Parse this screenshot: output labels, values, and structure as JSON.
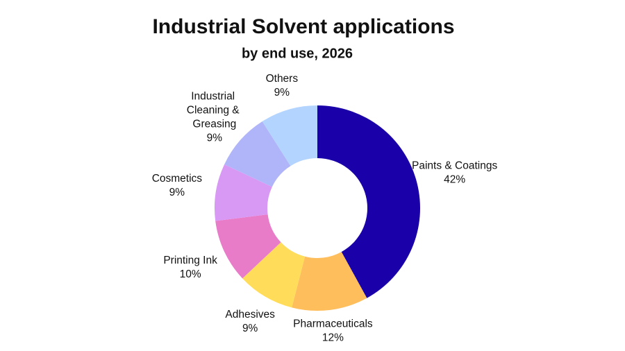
{
  "chart_data": {
    "type": "donut",
    "title": "Industrial Solvent applications",
    "subtitle": "by end use, 2026",
    "categories": [
      "Paints & Coatings",
      "Pharmaceuticals",
      "Adhesives",
      "Printing Ink",
      "Cosmetics",
      "Industrial Cleaning & Greasing",
      "Others"
    ],
    "values": [
      42,
      12,
      9,
      10,
      9,
      9,
      9
    ],
    "value_labels": [
      "42%",
      "12%",
      "9%",
      "10%",
      "9%",
      "9%",
      "9%"
    ],
    "colors": [
      "#1a00a8",
      "#ffbe5c",
      "#ffdc5a",
      "#e87cc9",
      "#d899f5",
      "#b0b5f9",
      "#b3d4ff"
    ]
  }
}
